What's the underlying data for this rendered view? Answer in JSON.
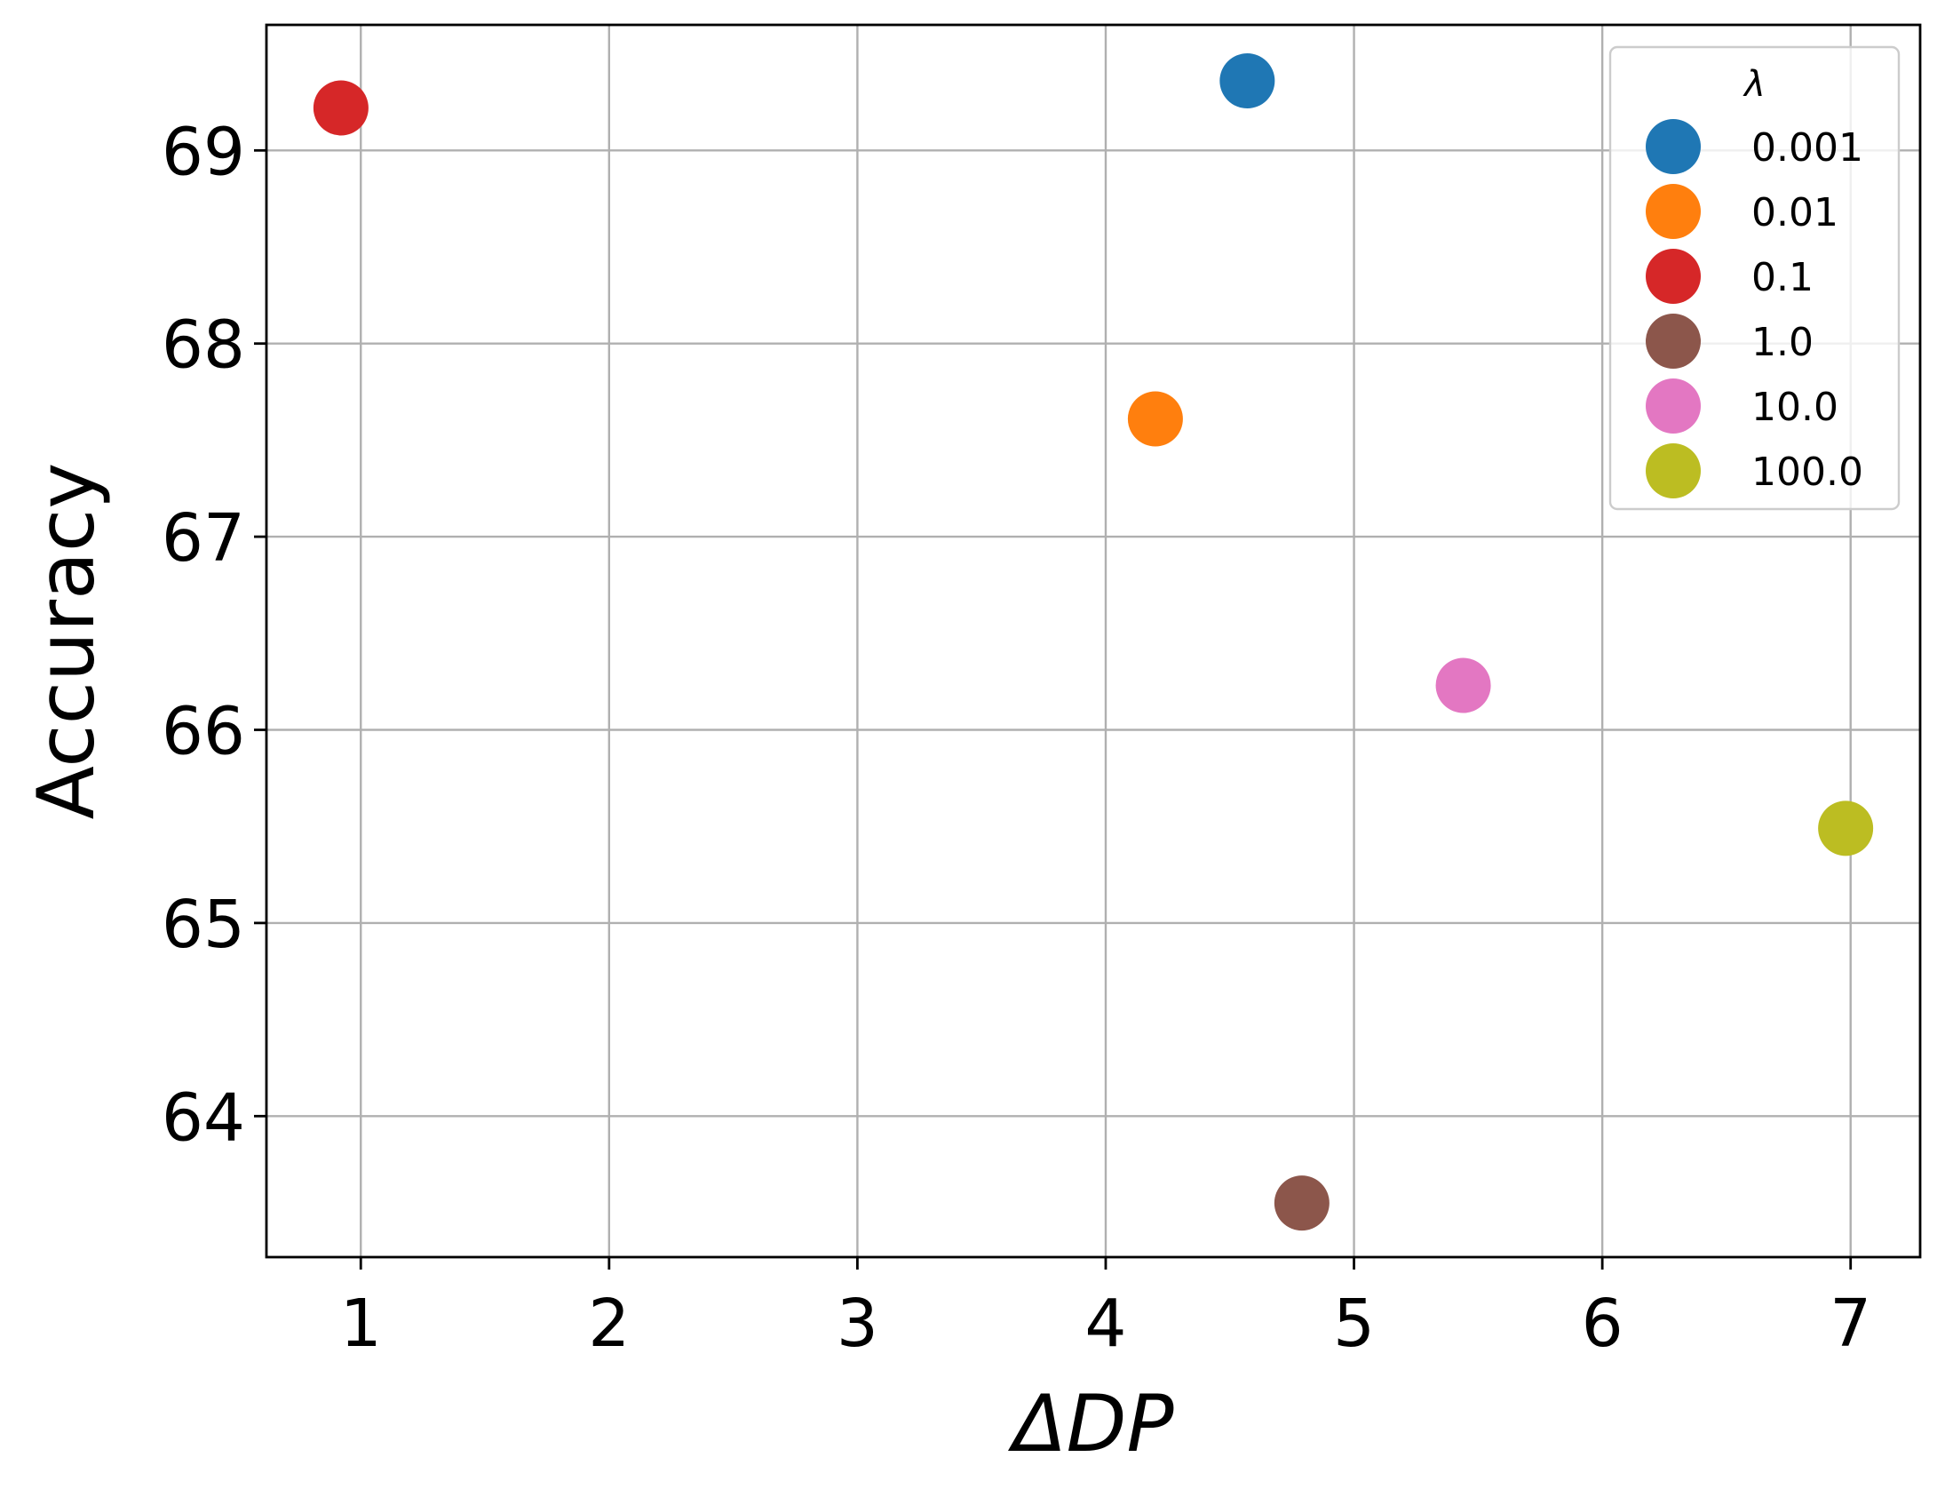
{
  "chart_data": {
    "type": "scatter",
    "title": "",
    "xlabel": "ΔDP",
    "ylabel": "Accuracy",
    "xlim": [
      0.62,
      7.28
    ],
    "ylim": [
      63.27,
      69.65
    ],
    "xticks": [
      1,
      2,
      3,
      4,
      5,
      6,
      7
    ],
    "yticks": [
      64,
      65,
      66,
      67,
      68,
      69
    ],
    "grid": true,
    "legend": {
      "title": "λ",
      "placement": "top-right"
    },
    "series": [
      {
        "name": "0.001",
        "color": "#1f77b4",
        "points": [
          {
            "x": 4.57,
            "y": 69.36
          }
        ]
      },
      {
        "name": "0.01",
        "color": "#ff7f0e",
        "points": [
          {
            "x": 4.2,
            "y": 67.61
          }
        ]
      },
      {
        "name": "0.1",
        "color": "#d62728",
        "points": [
          {
            "x": 0.92,
            "y": 69.22
          }
        ]
      },
      {
        "name": "1.0",
        "color": "#8c564b",
        "points": [
          {
            "x": 4.79,
            "y": 63.55
          }
        ]
      },
      {
        "name": "10.0",
        "color": "#e377c2",
        "points": [
          {
            "x": 5.44,
            "y": 66.23
          }
        ]
      },
      {
        "name": "100.0",
        "color": "#bcbd22",
        "points": [
          {
            "x": 6.98,
            "y": 65.49
          }
        ]
      }
    ]
  }
}
